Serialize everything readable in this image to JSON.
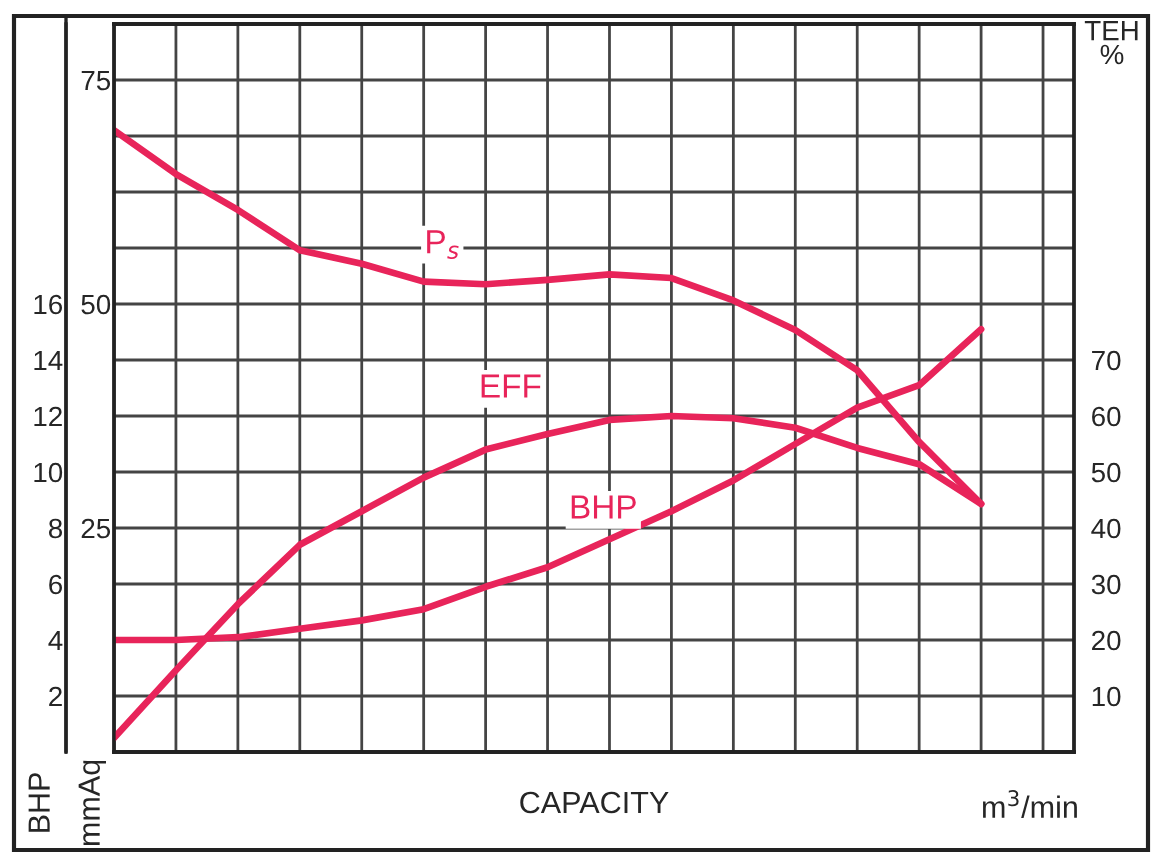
{
  "chart_data": {
    "type": "line",
    "xlabel": "CAPACITY",
    "ylabel": "BHP",
    "y2label": "mmAq",
    "y3label": "TEH\n%",
    "annotations": [
      "m$^{3}$/min"
    ],
    "categories": [
      null,
      null,
      null,
      null,
      null,
      null,
      null,
      null,
      null,
      null,
      null,
      null,
      null,
      null,
      null,
      null
    ],
    "series": [
      {
        "name": "P$_{s}$",
        "color": "#e8245a",
        "axis": "y2",
        "values": [
          69.4,
          64.5,
          60.5,
          56,
          54.5,
          52.5,
          52.2,
          52.7,
          53.3,
          52.9,
          50.4,
          47.1,
          42.6,
          34.6,
          27.7,
          null
        ]
      },
      {
        "name": "EFF",
        "color": "#e8245a",
        "axis": "y3",
        "values": [
          2.5,
          14.6,
          26.4,
          37,
          43,
          49,
          54,
          56.8,
          59.3,
          60,
          59.6,
          57.9,
          54.3,
          51.4,
          44.3,
          null
        ]
      },
      {
        "name": "BHP",
        "color": "#e8245a",
        "axis": "y",
        "values": [
          4.0,
          4.0,
          4.1,
          4.4,
          4.7,
          5.1,
          5.9,
          6.6,
          7.6,
          8.6,
          9.7,
          11,
          12.3,
          13.1,
          15.1,
          null
        ]
      }
    ],
    "ylim": [
      0,
      26
    ],
    "yticks": [
      2,
      4,
      6,
      8,
      10,
      12,
      14,
      16,
      {
        "value": 18,
        "label": null
      },
      {
        "value": 20,
        "label": null
      },
      {
        "value": 22,
        "label": null
      },
      {
        "value": 24,
        "label": null
      }
    ],
    "y2lim": [
      0,
      81.25
    ],
    "y2ticks": [
      25,
      50,
      75
    ],
    "y3lim": [
      0,
      130
    ],
    "y3ticks": [
      10,
      20,
      30,
      40,
      50,
      60,
      70
    ],
    "tick_labels": [
      "y",
      "y2",
      "y3"
    ],
    "grid": true,
    "legend": false,
    "marker": "none",
    "line_style": "solid"
  }
}
